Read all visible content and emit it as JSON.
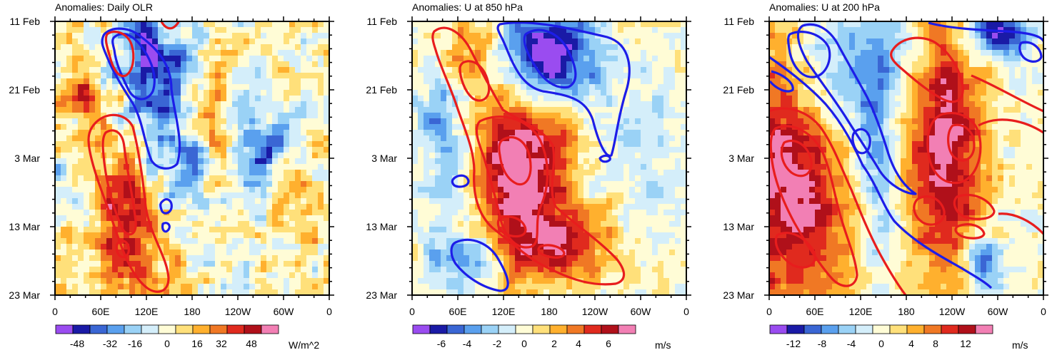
{
  "chart_data": [
    {
      "type": "heatmap",
      "title": "Anomalies: Daily OLR",
      "units": "W/m^2",
      "x_tick_labels": [
        "0",
        "60E",
        "120E",
        "180",
        "120W",
        "60W",
        "0"
      ],
      "y_tick_labels": [
        "11 Feb",
        "21 Feb",
        "3 Mar",
        "13 Mar",
        "23 Mar"
      ],
      "colorbar_labels": [
        "-48",
        "-32",
        "-16",
        "0",
        "16",
        "32",
        "48"
      ],
      "colorbar_range": [
        -56,
        56
      ],
      "contours": [
        {
          "color": "#1d1de8",
          "sign": "negative"
        },
        {
          "color": "#e81d1d",
          "sign": "positive"
        }
      ]
    },
    {
      "type": "heatmap",
      "title": "Anomalies: U at 850 hPa",
      "units": "m/s",
      "x_tick_labels": [
        "0",
        "60E",
        "120E",
        "180",
        "120W",
        "60W",
        "0"
      ],
      "y_tick_labels": [
        "11 Feb",
        "21 Feb",
        "3 Mar",
        "13 Mar",
        "23 Mar"
      ],
      "colorbar_labels": [
        "-6",
        "-4",
        "-2",
        "0",
        "2",
        "4",
        "6"
      ],
      "colorbar_range": [
        -7,
        7
      ],
      "contours": [
        {
          "color": "#1d1de8",
          "sign": "negative"
        },
        {
          "color": "#e81d1d",
          "sign": "positive"
        }
      ]
    },
    {
      "type": "heatmap",
      "title": "Anomalies: U at 200 hPa",
      "units": "m/s",
      "x_tick_labels": [
        "0",
        "60E",
        "120E",
        "180",
        "120W",
        "60W",
        "0"
      ],
      "y_tick_labels": [
        "11 Feb",
        "21 Feb",
        "3 Mar",
        "13 Mar",
        "23 Mar"
      ],
      "colorbar_labels": [
        "-12",
        "-8",
        "-4",
        "0",
        "4",
        "8",
        "12"
      ],
      "colorbar_range": [
        -14,
        14
      ],
      "contours": [
        {
          "color": "#1d1de8",
          "sign": "negative"
        },
        {
          "color": "#e81d1d",
          "sign": "positive"
        }
      ]
    }
  ],
  "palette": [
    "#9a4cf0",
    "#1a1aa6",
    "#3a66d4",
    "#5aa0ee",
    "#9ad2f6",
    "#d4eefa",
    "#fffcd6",
    "#ffe07a",
    "#ffb02e",
    "#f07824",
    "#e02a1e",
    "#b0101a",
    "#f27fb4"
  ]
}
